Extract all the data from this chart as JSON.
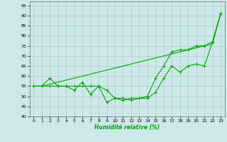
{
  "xlabel": "Humidité relative (%)",
  "background_color": "#cce8e8",
  "grid_color": "#aacccc",
  "line_color": "#00aa00",
  "xlim": [
    -0.5,
    23.5
  ],
  "ylim": [
    40,
    97
  ],
  "yticks": [
    40,
    45,
    50,
    55,
    60,
    65,
    70,
    75,
    80,
    85,
    90,
    95
  ],
  "xticks": [
    0,
    1,
    2,
    3,
    4,
    5,
    6,
    7,
    8,
    9,
    10,
    11,
    12,
    13,
    14,
    15,
    16,
    17,
    18,
    19,
    20,
    21,
    22,
    23
  ],
  "x": [
    0,
    1,
    2,
    3,
    4,
    5,
    6,
    7,
    8,
    9,
    10,
    11,
    12,
    13,
    14,
    15,
    16,
    17,
    18,
    19,
    20,
    21,
    22,
    23
  ],
  "line1": [
    55,
    55,
    59,
    55,
    55,
    53,
    57,
    51,
    55,
    53,
    49,
    49,
    48,
    49,
    49,
    52,
    59,
    65,
    62,
    65,
    66,
    65,
    77,
    91
  ],
  "line2": [
    55,
    55,
    55,
    55,
    55,
    55,
    55,
    55,
    55,
    47,
    49,
    48,
    49,
    49,
    50,
    59,
    65,
    72,
    73,
    73,
    75,
    75,
    77,
    91
  ],
  "line3": [
    55,
    55,
    56,
    57,
    58,
    59,
    60,
    61,
    62,
    63,
    64,
    65,
    66,
    67,
    68,
    69,
    70,
    71,
    72,
    73,
    74,
    75,
    76,
    91
  ]
}
